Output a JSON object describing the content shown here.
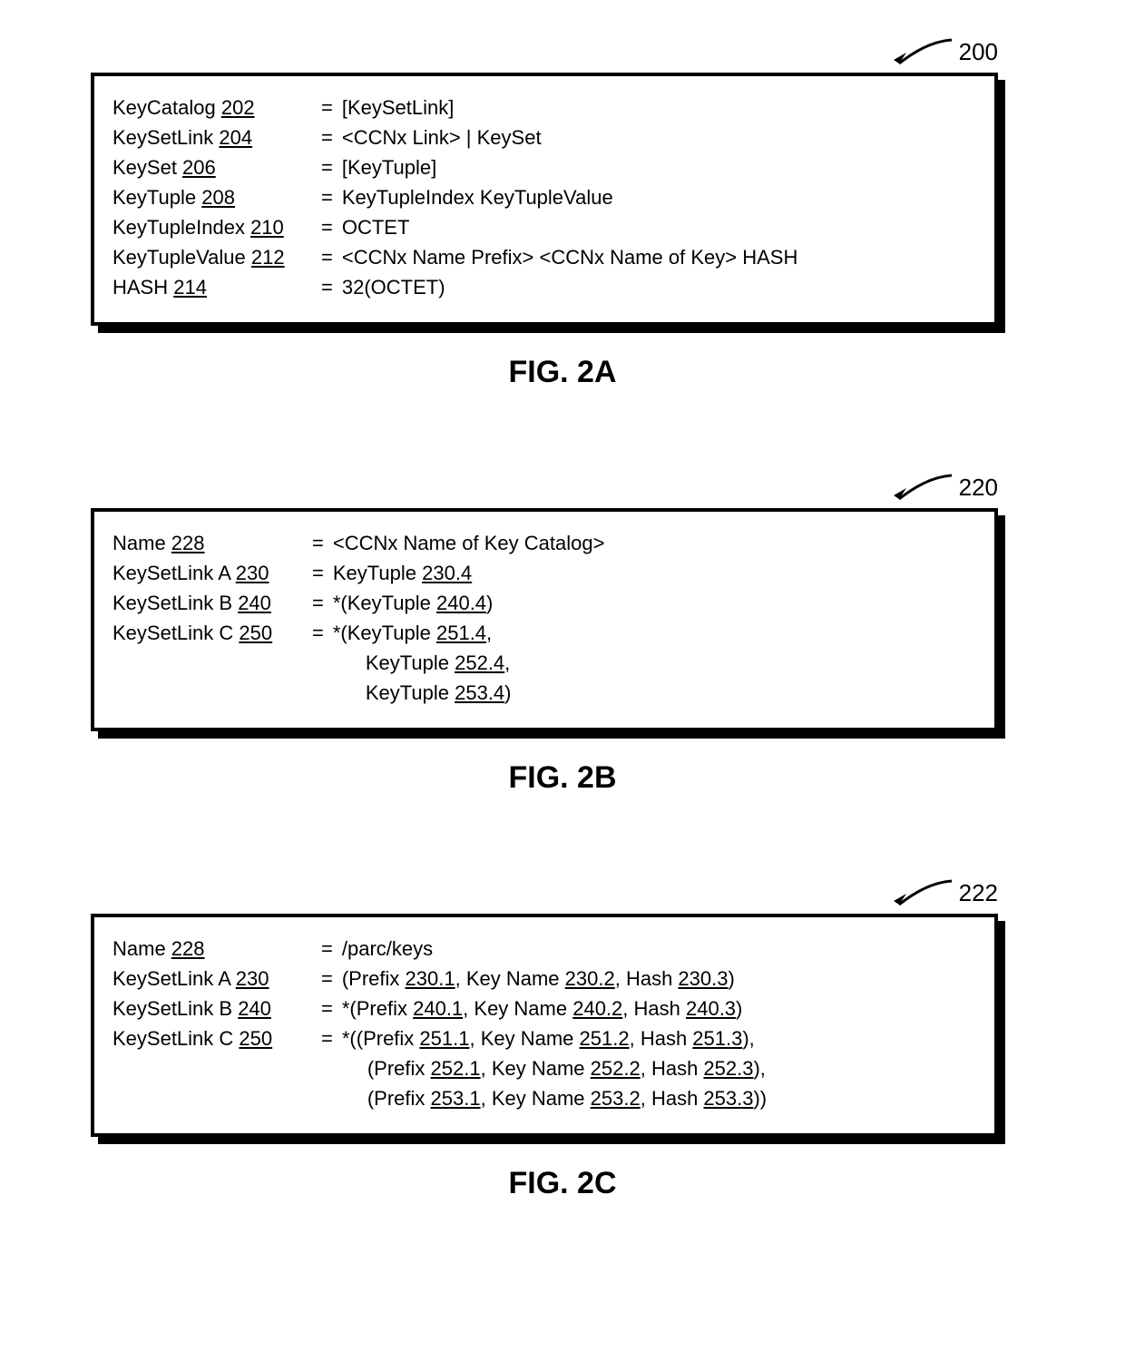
{
  "figures": {
    "a": {
      "pointer_label": "200",
      "caption": "FIG. 2A",
      "rows": [
        {
          "left_plain": "KeyCatalog ",
          "left_u": "202",
          "right": "[KeySetLink]"
        },
        {
          "left_plain": "KeySetLink ",
          "left_u": "204",
          "right": "<CCNx Link> | KeySet"
        },
        {
          "left_plain": "KeySet ",
          "left_u": "206",
          "right": "[KeyTuple]"
        },
        {
          "left_plain": "KeyTuple ",
          "left_u": "208",
          "right": "KeyTupleIndex KeyTupleValue"
        },
        {
          "left_plain": "KeyTupleIndex ",
          "left_u": "210",
          "right": "OCTET"
        },
        {
          "left_plain": "KeyTupleValue ",
          "left_u": "212",
          "right": "<CCNx Name Prefix> <CCNx Name of Key> HASH"
        },
        {
          "left_plain": "HASH ",
          "left_u": "214",
          "right": "32(OCTET)"
        }
      ]
    },
    "b": {
      "pointer_label": "220",
      "caption": "FIG. 2B",
      "name": {
        "lp": "Name ",
        "lu": "228",
        "r": "<CCNx Name of Key Catalog>"
      },
      "linkA": {
        "lp": "KeySetLink A ",
        "lu": "230",
        "r_pre": "KeyTuple ",
        "r_u": "230.4"
      },
      "linkB": {
        "lp": "KeySetLink B ",
        "lu": "240",
        "r_pre": "*(KeyTuple ",
        "r_u": "240.4",
        "r_post": ")"
      },
      "linkC_l": {
        "lp": "KeySetLink C ",
        "lu": "250"
      },
      "linkC_1": {
        "pre": "*(KeyTuple ",
        "u": "251.4",
        "post": ","
      },
      "linkC_2": {
        "pre": "KeyTuple ",
        "u": "252.4",
        "post": ","
      },
      "linkC_3": {
        "pre": "KeyTuple ",
        "u": "253.4",
        "post": ")"
      }
    },
    "c": {
      "pointer_label": "222",
      "caption": "FIG. 2C",
      "name": {
        "lp": "Name ",
        "lu": "228",
        "r": "/parc/keys"
      },
      "linkA": {
        "lp": "KeySetLink A ",
        "lu": "230",
        "r_p1": "(Prefix ",
        "r_u1": "230.1",
        "r_p2": ", Key Name ",
        "r_u2": "230.2",
        "r_p3": ", Hash ",
        "r_u3": "230.3",
        "r_p4": ")"
      },
      "linkB": {
        "lp": "KeySetLink B ",
        "lu": "240",
        "r_p1": "*(Prefix ",
        "r_u1": "240.1",
        "r_p2": ", Key Name ",
        "r_u2": "240.2",
        "r_p3": ", Hash ",
        "r_u3": "240.3",
        "r_p4": ")"
      },
      "linkC_l": {
        "lp": "KeySetLink C ",
        "lu": "250"
      },
      "linkC_1": {
        "p1": "*((Prefix ",
        "u1": "251.1",
        "p2": ", Key Name ",
        "u2": "251.2",
        "p3": ", Hash ",
        "u3": "251.3",
        "p4": "),"
      },
      "linkC_2": {
        "p1": "(Prefix ",
        "u1": "252.1",
        "p2": ", Key Name ",
        "u2": "252.2",
        "p3": ", Hash ",
        "u3": "252.3",
        "p4": "),"
      },
      "linkC_3": {
        "p1": "(Prefix ",
        "u1": "253.1",
        "p2": ", Key Name ",
        "u2": "253.2",
        "p3": ", Hash ",
        "u3": "253.3",
        "p4": "))"
      }
    }
  },
  "style": {
    "left_col_width_a": "220px",
    "left_col_width_bc": "210px",
    "eq_symbol": "="
  }
}
